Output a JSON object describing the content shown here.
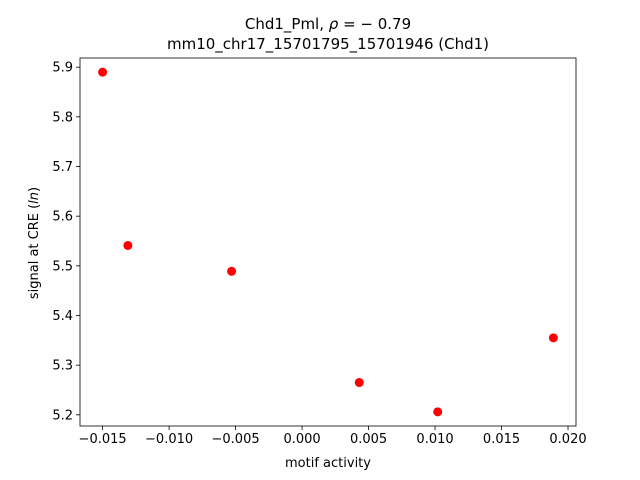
{
  "chart_data": {
    "type": "scatter",
    "title_line1_prefix": "Chd1_Pml, ",
    "title_line1_rho": "ρ",
    "title_line1_suffix": " = − 0.79",
    "title_line2": "mm10_chr17_15701795_15701946 (Chd1)",
    "xlabel": "motif activity",
    "ylabel_prefix": "signal at CRE (",
    "ylabel_italic": "ln",
    "ylabel_suffix": ")",
    "xlim": [
      -0.0167,
      0.0206
    ],
    "ylim": [
      5.1775,
      5.9185
    ],
    "xticks": [
      -0.015,
      -0.01,
      -0.005,
      0.0,
      0.005,
      0.01,
      0.015,
      0.02
    ],
    "xtick_labels": [
      "−0.015",
      "−0.010",
      "−0.005",
      "0.000",
      "0.005",
      "0.010",
      "0.015",
      "0.020"
    ],
    "yticks": [
      5.2,
      5.3,
      5.4,
      5.5,
      5.6,
      5.7,
      5.8,
      5.9
    ],
    "ytick_labels": [
      "5.2",
      "5.3",
      "5.4",
      "5.5",
      "5.6",
      "5.7",
      "5.8",
      "5.9"
    ],
    "grid": false,
    "marker_color": "#ff0000",
    "points": [
      {
        "x": -0.015,
        "y": 5.89
      },
      {
        "x": -0.0131,
        "y": 5.541
      },
      {
        "x": -0.0053,
        "y": 5.489
      },
      {
        "x": 0.0043,
        "y": 5.265
      },
      {
        "x": 0.0102,
        "y": 5.206
      },
      {
        "x": 0.0189,
        "y": 5.355
      }
    ]
  }
}
